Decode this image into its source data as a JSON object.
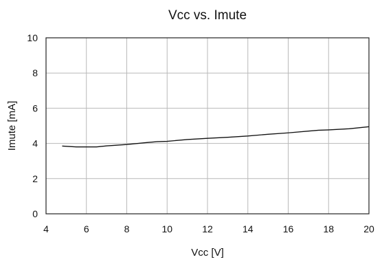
{
  "chart_data": {
    "type": "line",
    "title": "Vcc vs. Imute",
    "xlabel": "Vcc [V]",
    "ylabel": "Imute [mA]",
    "xlim": [
      4,
      20
    ],
    "ylim": [
      0,
      10
    ],
    "x_ticks": [
      4,
      6,
      8,
      10,
      12,
      14,
      16,
      18,
      20
    ],
    "y_ticks": [
      0,
      2,
      4,
      6,
      8,
      10
    ],
    "x_tick_labels": [
      "4",
      "6",
      "8",
      "10",
      "12",
      "14",
      "16",
      "18",
      "20"
    ],
    "y_tick_labels": [
      "0",
      "2",
      "4",
      "6",
      "8",
      "10"
    ],
    "grid": true,
    "series": [
      {
        "x": [
          4.8,
          5.5,
          6.5,
          7.0,
          8.0,
          9.0,
          9.5,
          10.0,
          11.0,
          12.0,
          13.0,
          14.0,
          15.0,
          16.0,
          17.0,
          17.5,
          18.0,
          19.0,
          20.0
        ],
        "values": [
          3.85,
          3.8,
          3.8,
          3.86,
          3.94,
          4.05,
          4.1,
          4.12,
          4.22,
          4.29,
          4.35,
          4.42,
          4.52,
          4.6,
          4.7,
          4.75,
          4.77,
          4.83,
          4.95
        ],
        "color": "#111111"
      }
    ]
  }
}
